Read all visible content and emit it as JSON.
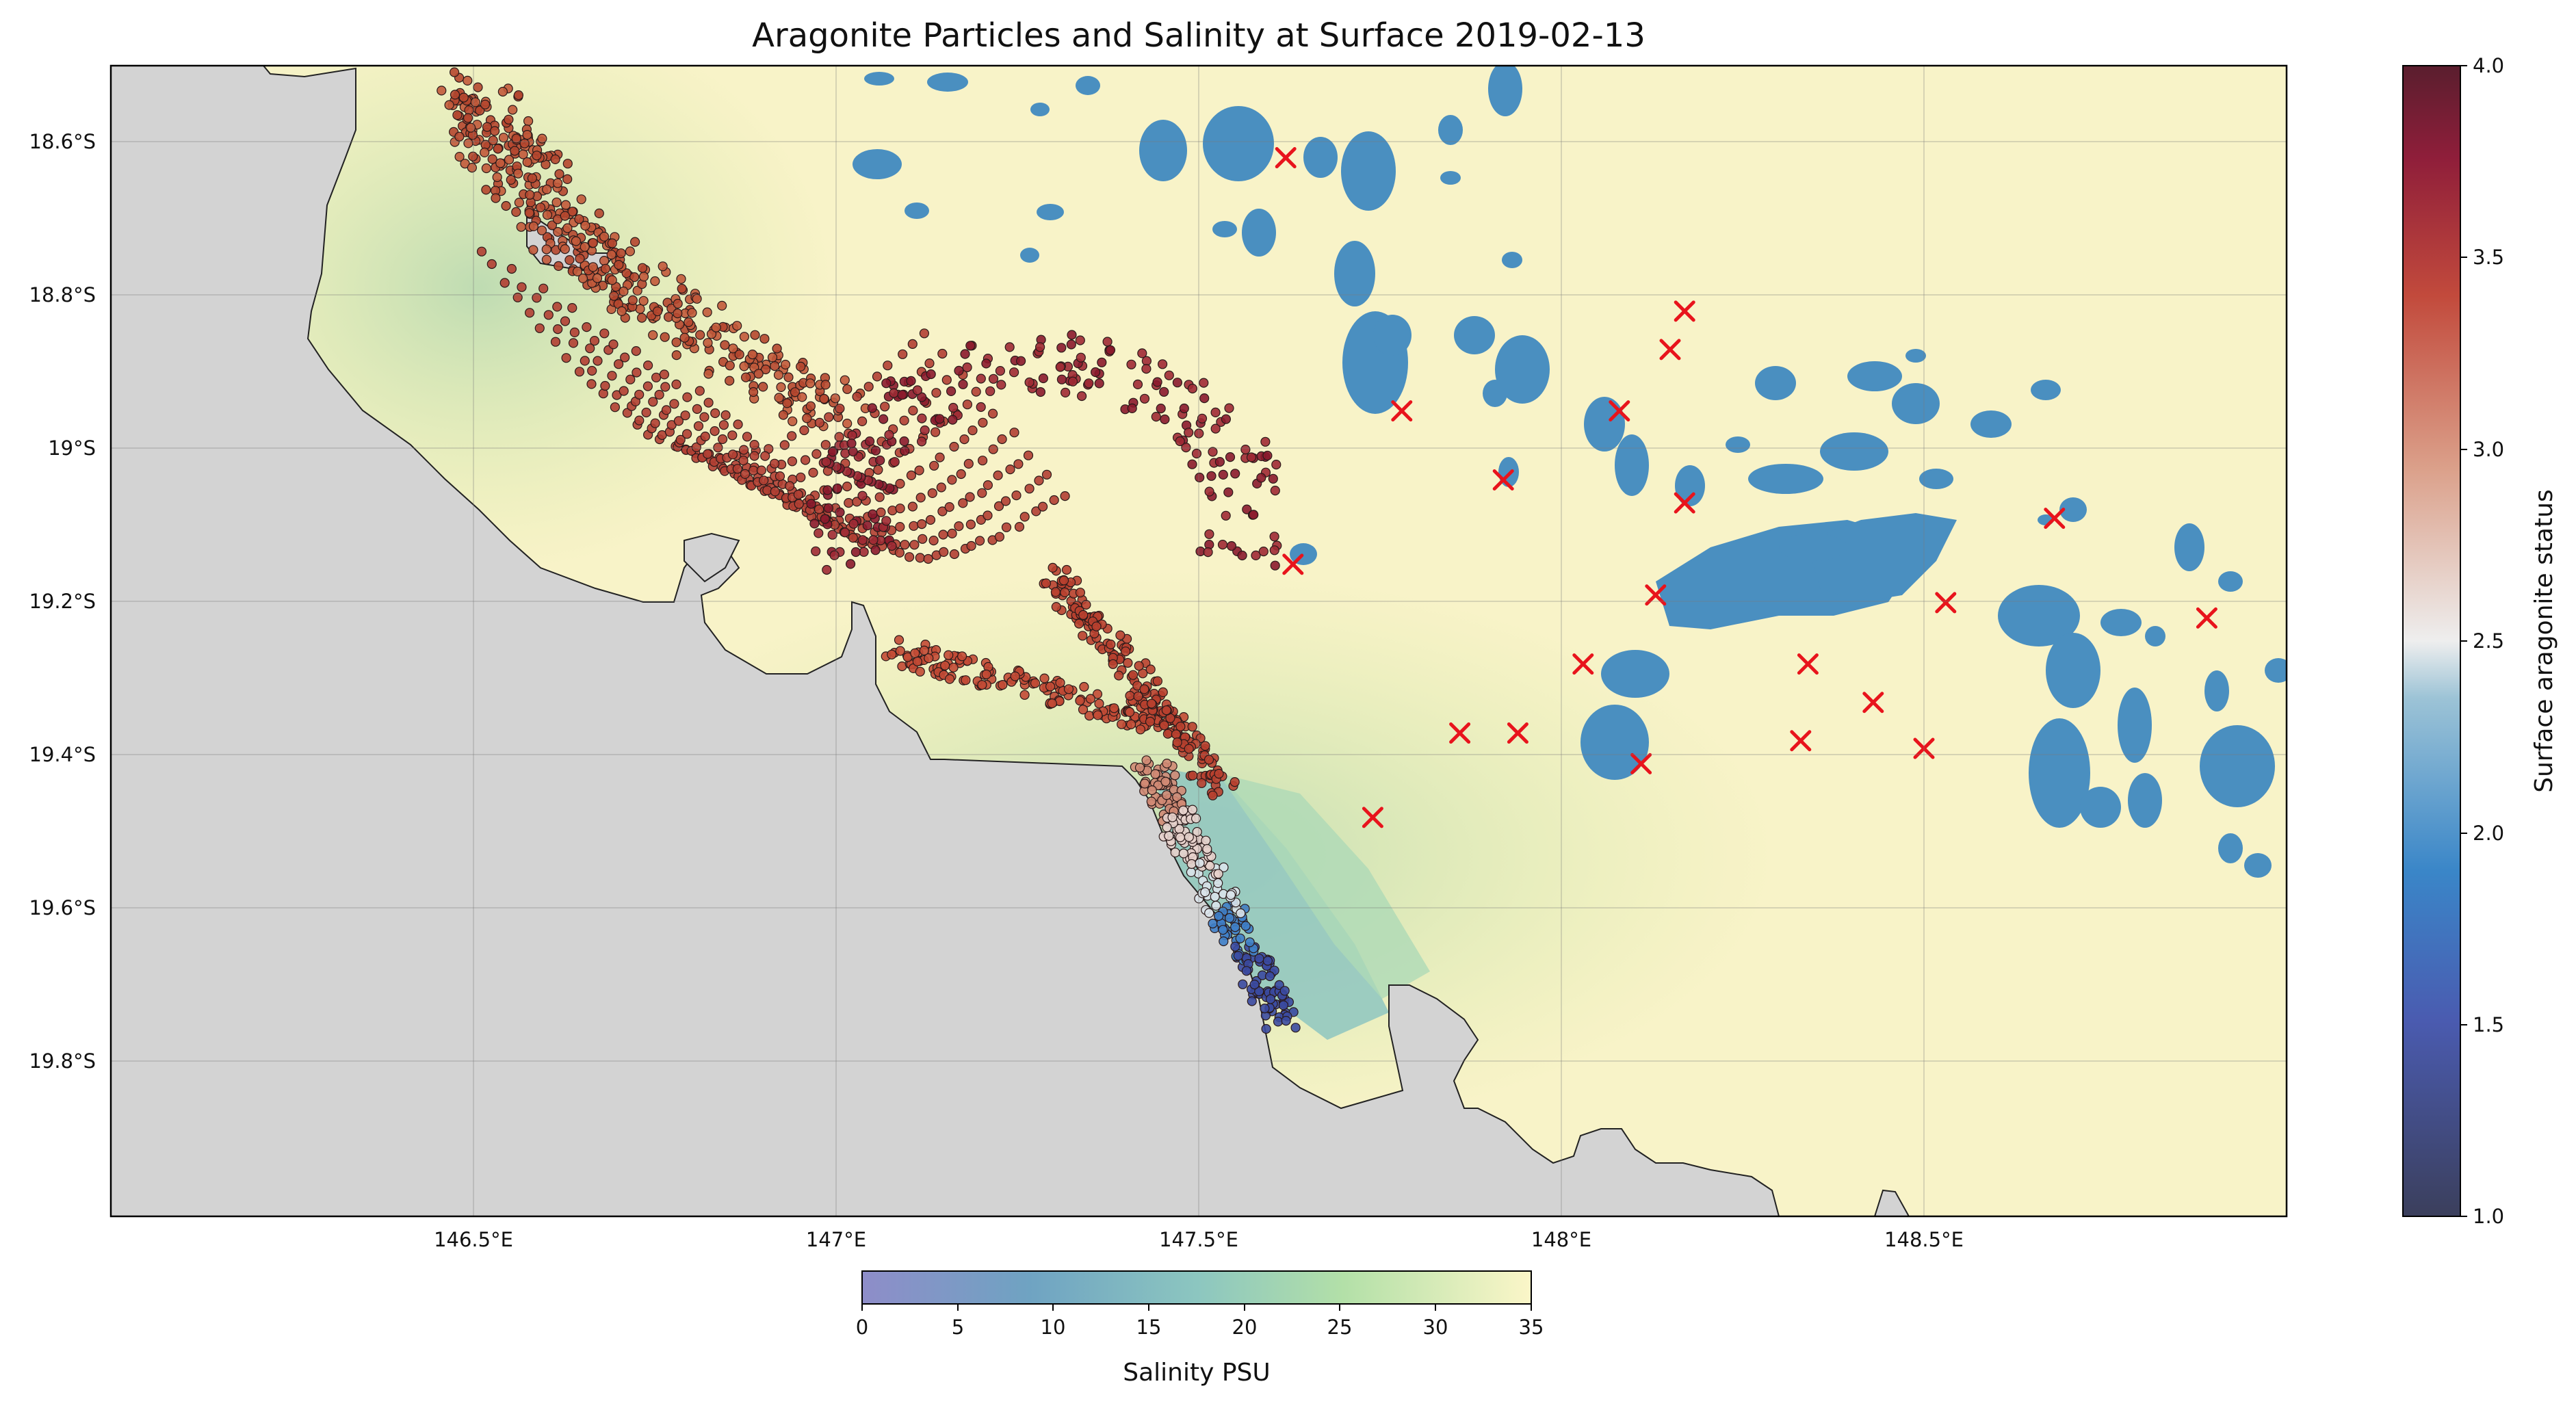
{
  "map": {
    "title": "Aragonite Particles and Salinity at Surface 2019-02-13",
    "lat_ticks": [
      "18.6°S",
      "18.8°S",
      "19°S",
      "19.2°S",
      "19.4°S",
      "19.6°S",
      "19.8°S"
    ],
    "lon_ticks": [
      "146.5°E",
      "147°E",
      "147.5°E",
      "148°E",
      "148.5°E"
    ],
    "extent": {
      "lon_min": 146.0,
      "lon_max": 149.0,
      "lat_min": -20.0,
      "lat_max": -18.5
    }
  },
  "colorbar_aragonite": {
    "label": "Surface aragonite status",
    "ticks": [
      "1.0",
      "1.5",
      "2.0",
      "2.5",
      "3.0",
      "3.5",
      "4.0"
    ],
    "min": 1.0,
    "max": 4.0
  },
  "colorbar_salinity": {
    "label": "Salinity PSU",
    "ticks": [
      "0",
      "5",
      "10",
      "15",
      "20",
      "25",
      "30",
      "35"
    ],
    "min": 0,
    "max": 35
  },
  "colors": {
    "land": "#d3d3d3",
    "reef": "#4a8fc0",
    "marker": "#e8141c",
    "salinity_high": "#fbf6c8",
    "salinity_mid": "#d9eba8",
    "salinity_low": "#8fc0c8"
  },
  "stations": [
    [
      147.62,
      -18.62
    ],
    [
      147.78,
      -18.95
    ],
    [
      147.63,
      -19.15
    ],
    [
      147.92,
      -19.04
    ],
    [
      148.08,
      -18.95
    ],
    [
      148.15,
      -18.87
    ],
    [
      148.17,
      -18.82
    ],
    [
      148.17,
      -19.07
    ],
    [
      148.13,
      -19.19
    ],
    [
      148.03,
      -19.28
    ],
    [
      147.86,
      -19.37
    ],
    [
      147.94,
      -19.37
    ],
    [
      148.11,
      -19.41
    ],
    [
      147.74,
      -19.48
    ],
    [
      148.34,
      -19.28
    ],
    [
      148.33,
      -19.38
    ],
    [
      148.43,
      -19.33
    ],
    [
      148.5,
      -19.39
    ],
    [
      148.53,
      -19.2
    ],
    [
      148.68,
      -19.09
    ],
    [
      148.89,
      -19.22
    ]
  ]
}
